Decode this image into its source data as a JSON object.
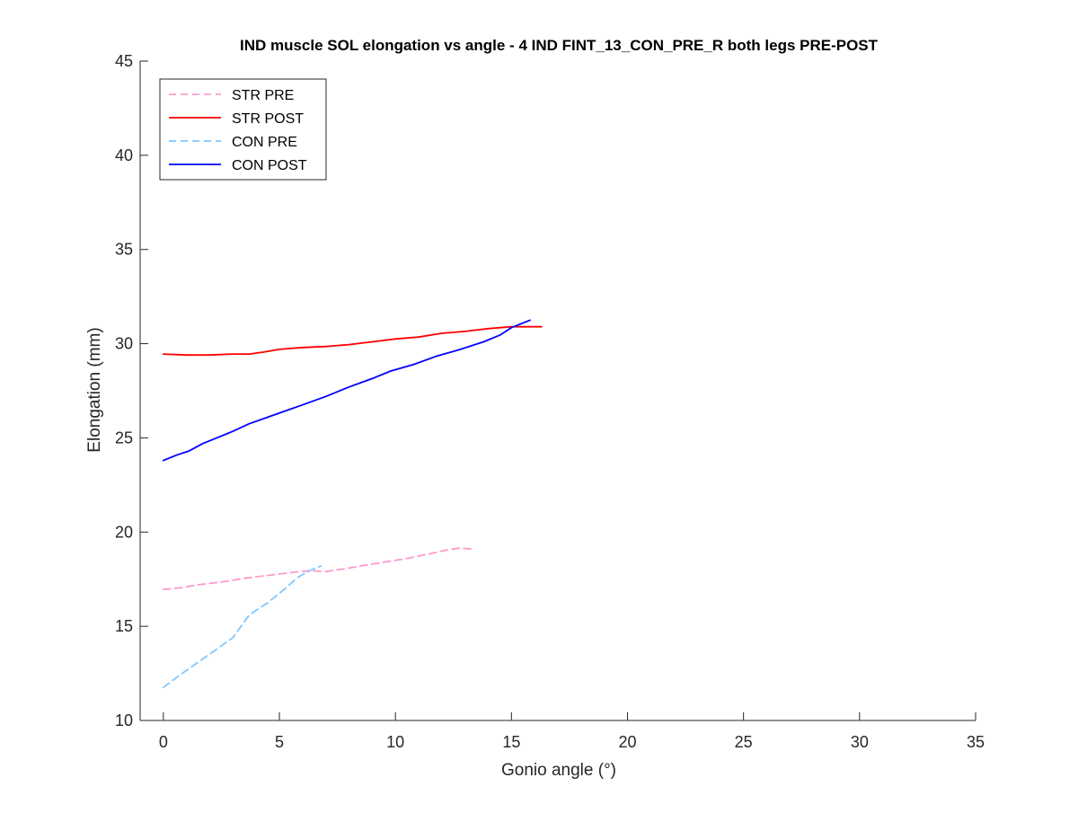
{
  "chart_data": {
    "type": "line",
    "title": "IND muscle SOL elongation vs angle - 4 IND FINT_13_CON_PRE_R both legs PRE-POST",
    "xlabel": "Gonio angle (°)",
    "ylabel": "Elongation (mm)",
    "xlim": [
      -1,
      35
    ],
    "ylim": [
      10,
      45
    ],
    "xticks": [
      0,
      5,
      10,
      15,
      20,
      25,
      30,
      35
    ],
    "yticks": [
      10,
      15,
      20,
      25,
      30,
      35,
      40,
      45
    ],
    "xtick_labels": [
      "0",
      "5",
      "10",
      "15",
      "20",
      "25",
      "30",
      "35"
    ],
    "ytick_labels": [
      "10",
      "15",
      "20",
      "25",
      "30",
      "35",
      "40",
      "45"
    ],
    "grid": false,
    "legend_position": "top-left",
    "series": [
      {
        "name": "STR PRE",
        "color": "#ff99cc",
        "dash": "dashed",
        "points": [
          [
            0,
            16.95
          ],
          [
            0.8,
            17.05
          ],
          [
            1.5,
            17.2
          ],
          [
            2.5,
            17.35
          ],
          [
            3.5,
            17.55
          ],
          [
            4.5,
            17.7
          ],
          [
            5.5,
            17.85
          ],
          [
            6.3,
            17.95
          ],
          [
            7,
            17.9
          ],
          [
            7.8,
            18.05
          ],
          [
            8.5,
            18.2
          ],
          [
            9.5,
            18.4
          ],
          [
            10.5,
            18.6
          ],
          [
            11.5,
            18.85
          ],
          [
            12.2,
            19.05
          ],
          [
            12.8,
            19.15
          ],
          [
            13.3,
            19.1
          ]
        ]
      },
      {
        "name": "STR POST",
        "color": "#ff0000",
        "dash": "solid",
        "points": [
          [
            0,
            29.45
          ],
          [
            1,
            29.4
          ],
          [
            2,
            29.4
          ],
          [
            3,
            29.45
          ],
          [
            3.7,
            29.45
          ],
          [
            4.3,
            29.55
          ],
          [
            5,
            29.7
          ],
          [
            6,
            29.8
          ],
          [
            7,
            29.85
          ],
          [
            8,
            29.95
          ],
          [
            9,
            30.1
          ],
          [
            10,
            30.25
          ],
          [
            11,
            30.35
          ],
          [
            12,
            30.55
          ],
          [
            13,
            30.65
          ],
          [
            14,
            30.8
          ],
          [
            15,
            30.9
          ],
          [
            16.3,
            30.9
          ]
        ]
      },
      {
        "name": "CON PRE",
        "color": "#7fc8ff",
        "dash": "dashed",
        "points": [
          [
            0,
            11.75
          ],
          [
            0.7,
            12.4
          ],
          [
            1.5,
            13.1
          ],
          [
            2.2,
            13.7
          ],
          [
            3,
            14.4
          ],
          [
            3.7,
            15.6
          ],
          [
            4.5,
            16.25
          ],
          [
            5.2,
            16.95
          ],
          [
            5.8,
            17.6
          ],
          [
            6.3,
            17.95
          ],
          [
            6.8,
            18.2
          ]
        ]
      },
      {
        "name": "CON POST",
        "color": "#0000ff",
        "dash": "solid",
        "points": [
          [
            0,
            23.8
          ],
          [
            0.6,
            24.1
          ],
          [
            1.1,
            24.3
          ],
          [
            1.7,
            24.7
          ],
          [
            2.3,
            25
          ],
          [
            3,
            25.35
          ],
          [
            3.7,
            25.75
          ],
          [
            4.5,
            26.1
          ],
          [
            5.3,
            26.45
          ],
          [
            6,
            26.75
          ],
          [
            7,
            27.2
          ],
          [
            8,
            27.7
          ],
          [
            9,
            28.15
          ],
          [
            9.8,
            28.55
          ],
          [
            10.8,
            28.9
          ],
          [
            11.8,
            29.35
          ],
          [
            12.8,
            29.7
          ],
          [
            13.8,
            30.1
          ],
          [
            14.5,
            30.45
          ],
          [
            15,
            30.85
          ],
          [
            15.8,
            31.25
          ]
        ]
      }
    ]
  }
}
